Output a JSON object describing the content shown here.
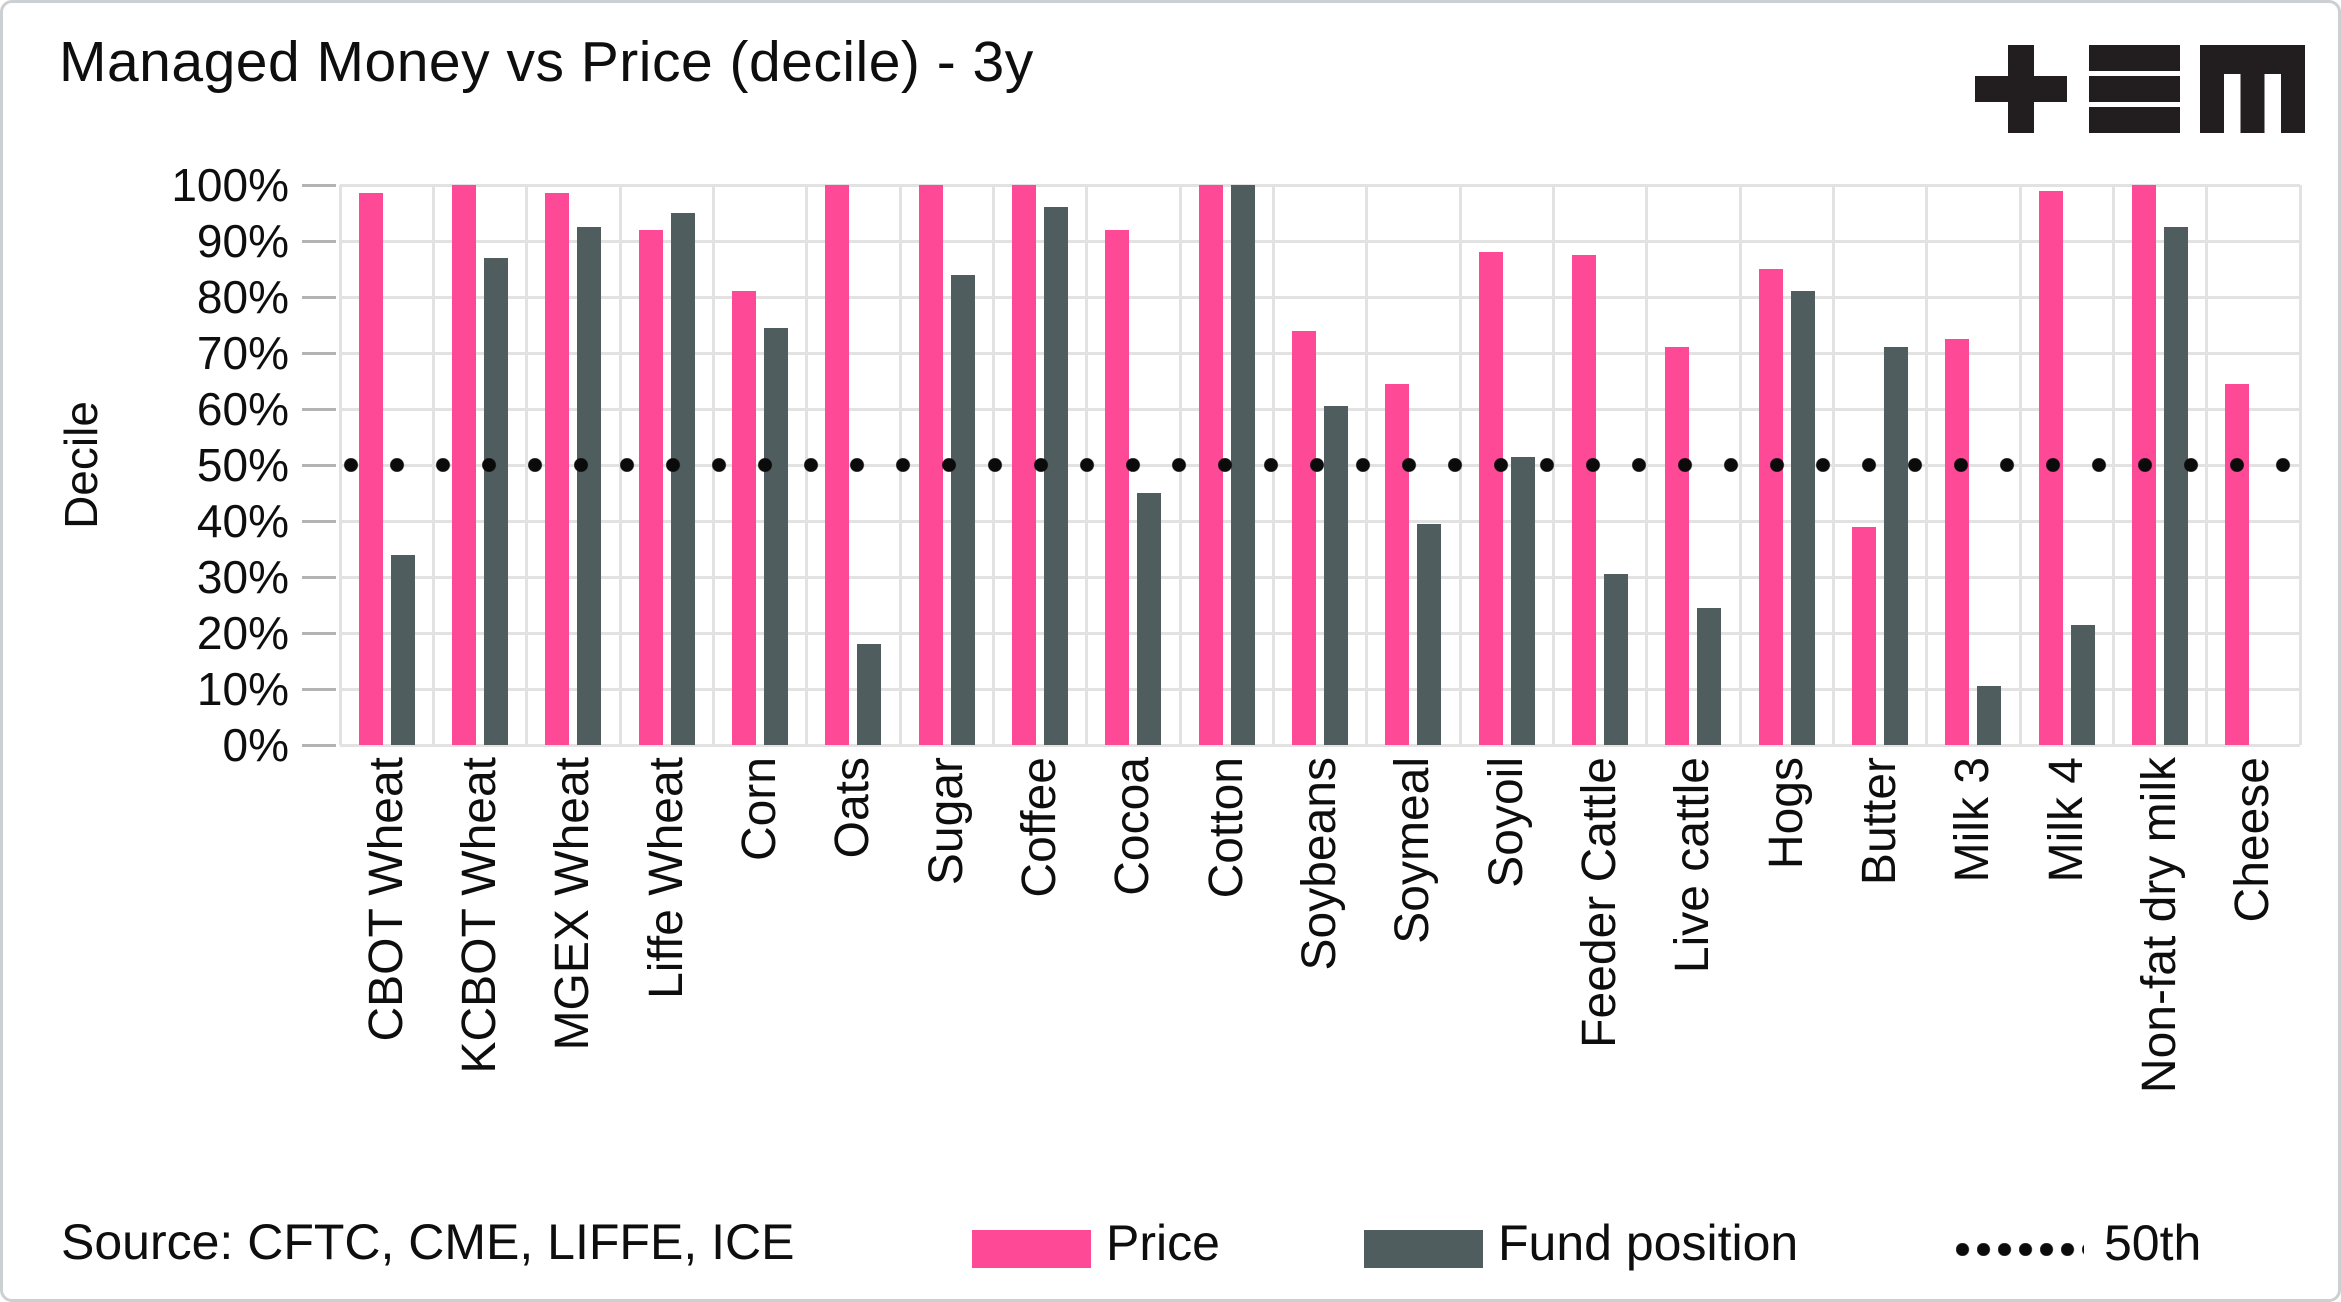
{
  "title": "Managed Money vs Price (decile) - 3y",
  "logo_text": "+≡M",
  "source": "Source: CFTC, CME, LIFFE, ICE",
  "legend": [
    {
      "label": "Price",
      "type": "swatch",
      "color": "#FD4996"
    },
    {
      "label": "Fund position",
      "type": "swatch",
      "color": "#4F5D5E"
    },
    {
      "label": "50th",
      "type": "dotted-line",
      "color": "#0B0B0B"
    }
  ],
  "chart_data": {
    "type": "bar",
    "title": "Managed Money vs Price (decile) - 3y",
    "xlabel": "",
    "ylabel": "Decile",
    "ylim": [
      0,
      100
    ],
    "yticks": [
      0,
      10,
      20,
      30,
      40,
      50,
      60,
      70,
      80,
      90,
      100
    ],
    "ytick_suffix": "%",
    "grid": "horizontal-and-vertical",
    "legend_position": "bottom",
    "categories": [
      "CBOT Wheat",
      "KCBOT Wheat",
      "MGEX Wheat",
      "Liffe Wheat",
      "Corn",
      "Oats",
      "Sugar",
      "Coffee",
      "Cocoa",
      "Cotton",
      "Soybeans",
      "Soymeal",
      "Soyoil",
      "Feeder Cattle",
      "Live cattle",
      "Hogs",
      "Butter",
      "Milk 3",
      "Milk 4",
      "Non-fat dry milk",
      "Cheese"
    ],
    "series": [
      {
        "name": "Price",
        "color": "#FD4996",
        "values": [
          98.5,
          100,
          98.5,
          92,
          81,
          100,
          100,
          100,
          92,
          100,
          74,
          64.5,
          88,
          87.5,
          71,
          85,
          39,
          72.5,
          99,
          100,
          64.5
        ]
      },
      {
        "name": "Fund position",
        "color": "#4F5D5E",
        "values": [
          34,
          87,
          92.5,
          95,
          74.5,
          18,
          84,
          96,
          45,
          100,
          60.5,
          39.5,
          51.5,
          30.5,
          24.5,
          81,
          71,
          10.5,
          21.5,
          92.5,
          null
        ]
      }
    ],
    "reference_line": {
      "label": "50th",
      "value": 50,
      "style": "dotted",
      "color": "#0B0B0B"
    }
  }
}
